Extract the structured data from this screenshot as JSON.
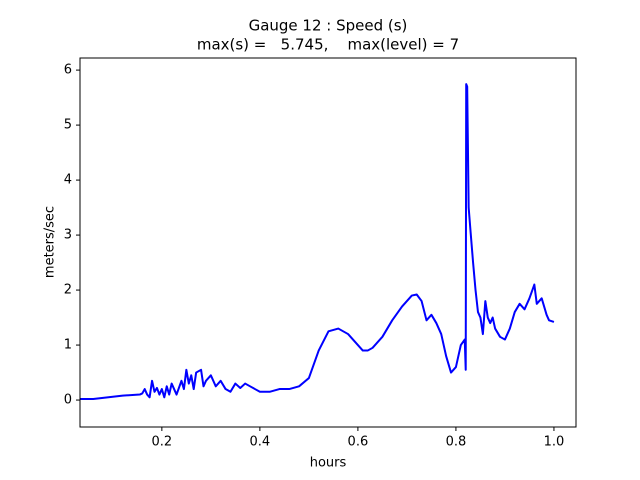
{
  "chart_data": {
    "type": "line",
    "title": "Gauge 12 : Speed (s)",
    "subtitle": "max(s) =   5.745,    max(level) = 7",
    "x_label": "hours",
    "y_label": "meters/sec",
    "x": [
      0.033,
      0.06,
      0.1,
      0.12,
      0.155,
      0.16,
      0.165,
      0.17,
      0.175,
      0.18,
      0.185,
      0.19,
      0.195,
      0.2,
      0.205,
      0.21,
      0.215,
      0.22,
      0.23,
      0.24,
      0.245,
      0.25,
      0.255,
      0.26,
      0.265,
      0.27,
      0.28,
      0.285,
      0.29,
      0.3,
      0.31,
      0.32,
      0.33,
      0.34,
      0.35,
      0.36,
      0.37,
      0.38,
      0.39,
      0.4,
      0.42,
      0.44,
      0.46,
      0.48,
      0.5,
      0.52,
      0.54,
      0.56,
      0.58,
      0.6,
      0.61,
      0.62,
      0.63,
      0.65,
      0.67,
      0.69,
      0.71,
      0.72,
      0.73,
      0.74,
      0.75,
      0.76,
      0.77,
      0.78,
      0.79,
      0.8,
      0.81,
      0.818,
      0.82,
      0.821,
      0.823,
      0.826,
      0.83,
      0.835,
      0.84,
      0.845,
      0.85,
      0.855,
      0.86,
      0.865,
      0.87,
      0.875,
      0.88,
      0.89,
      0.9,
      0.91,
      0.92,
      0.93,
      0.94,
      0.95,
      0.96,
      0.965,
      0.97,
      0.975,
      0.985,
      0.99,
      1.0
    ],
    "series": [
      {
        "name": "speed",
        "color": "#0000ff",
        "values": [
          0.02,
          0.02,
          0.06,
          0.08,
          0.1,
          0.12,
          0.2,
          0.1,
          0.05,
          0.35,
          0.15,
          0.22,
          0.1,
          0.2,
          0.05,
          0.25,
          0.1,
          0.3,
          0.1,
          0.35,
          0.2,
          0.55,
          0.3,
          0.45,
          0.2,
          0.5,
          0.55,
          0.25,
          0.35,
          0.45,
          0.25,
          0.35,
          0.2,
          0.15,
          0.3,
          0.22,
          0.3,
          0.25,
          0.2,
          0.15,
          0.15,
          0.2,
          0.2,
          0.25,
          0.4,
          0.9,
          1.25,
          1.3,
          1.2,
          1.0,
          0.9,
          0.9,
          0.95,
          1.15,
          1.45,
          1.7,
          1.9,
          1.92,
          1.8,
          1.45,
          1.55,
          1.4,
          1.2,
          0.8,
          0.5,
          0.6,
          1.0,
          1.1,
          0.55,
          5.745,
          5.7,
          3.5,
          3.05,
          2.5,
          2.0,
          1.6,
          1.5,
          1.2,
          1.8,
          1.5,
          1.4,
          1.5,
          1.3,
          1.15,
          1.1,
          1.3,
          1.6,
          1.75,
          1.65,
          1.85,
          2.1,
          1.75,
          1.8,
          1.85,
          1.55,
          1.45,
          1.42
        ]
      }
    ],
    "xlim": [
      0.033,
      1.045
    ],
    "ylim": [
      -0.49,
      6.22
    ],
    "xticks": [
      0.2,
      0.4,
      0.6,
      0.8,
      {
        "value": 1,
        "label": "1.0"
      }
    ],
    "yticks": [
      0,
      1,
      2,
      3,
      4,
      5,
      6
    ]
  }
}
